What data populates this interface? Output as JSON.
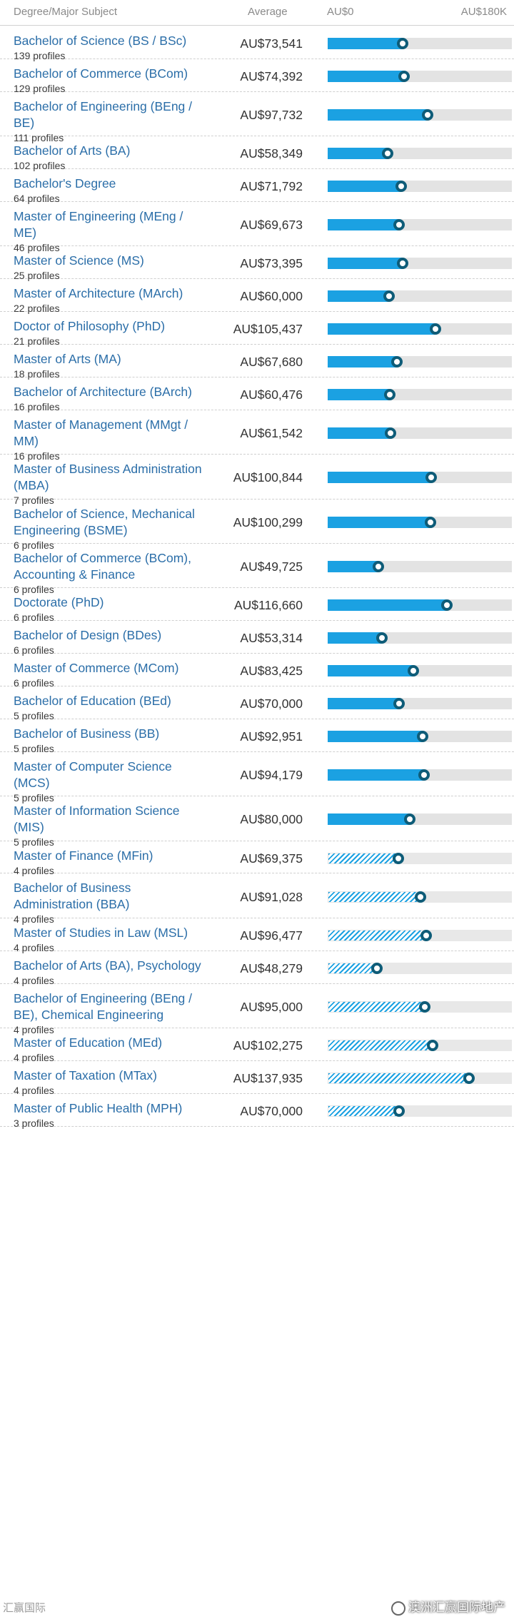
{
  "header": {
    "degree": "Degree/Major Subject",
    "average": "Average",
    "range_min": "AU$0",
    "range_max": "AU$180K"
  },
  "colors": {
    "bar": "#1ba1e2",
    "marker": "#0e5c78",
    "track": "#e3e3e3",
    "link": "#2b6ea8"
  },
  "scale_max": 180000,
  "rows": [
    {
      "name": "Bachelor of Science (BS / BSc)",
      "profiles": "139 profiles",
      "avg": "AU$73,541",
      "value": 73541,
      "lines": 1,
      "hatched": false
    },
    {
      "name": "Bachelor of Commerce (BCom)",
      "profiles": "129 profiles",
      "avg": "AU$74,392",
      "value": 74392,
      "lines": 1,
      "hatched": false
    },
    {
      "name": "Bachelor of Engineering (BEng / BE)",
      "profiles": "111 profiles",
      "avg": "AU$97,732",
      "value": 97732,
      "lines": 2,
      "hatched": false
    },
    {
      "name": "Bachelor of Arts (BA)",
      "profiles": "102 profiles",
      "avg": "AU$58,349",
      "value": 58349,
      "lines": 1,
      "hatched": false
    },
    {
      "name": "Bachelor's Degree",
      "profiles": "64 profiles",
      "avg": "AU$71,792",
      "value": 71792,
      "lines": 1,
      "hatched": false
    },
    {
      "name": "Master of Engineering (MEng / ME)",
      "profiles": "46 profiles",
      "avg": "AU$69,673",
      "value": 69673,
      "lines": 2,
      "hatched": false
    },
    {
      "name": "Master of Science (MS)",
      "profiles": "25 profiles",
      "avg": "AU$73,395",
      "value": 73395,
      "lines": 1,
      "hatched": false
    },
    {
      "name": "Master of Architecture (MArch)",
      "profiles": "22 profiles",
      "avg": "AU$60,000",
      "value": 60000,
      "lines": 1,
      "hatched": false
    },
    {
      "name": "Doctor of Philosophy (PhD)",
      "profiles": "21 profiles",
      "avg": "AU$105,437",
      "value": 105437,
      "lines": 1,
      "hatched": false
    },
    {
      "name": "Master of Arts (MA)",
      "profiles": "18 profiles",
      "avg": "AU$67,680",
      "value": 67680,
      "lines": 1,
      "hatched": false
    },
    {
      "name": "Bachelor of Architecture (BArch)",
      "profiles": "16 profiles",
      "avg": "AU$60,476",
      "value": 60476,
      "lines": 1,
      "hatched": false
    },
    {
      "name": "Master of Management (MMgt / MM)",
      "profiles": "16 profiles",
      "avg": "AU$61,542",
      "value": 61542,
      "lines": 2,
      "hatched": false
    },
    {
      "name": "Master of Business Administration (MBA)",
      "profiles": "7 profiles",
      "avg": "AU$100,844",
      "value": 100844,
      "lines": 2,
      "hatched": false
    },
    {
      "name": "Bachelor of Science, Mechanical Engineering (BSME)",
      "profiles": "6 profiles",
      "avg": "AU$100,299",
      "value": 100299,
      "lines": 2,
      "hatched": false
    },
    {
      "name": "Bachelor of Commerce (BCom), Accounting & Finance",
      "profiles": "6 profiles",
      "avg": "AU$49,725",
      "value": 49725,
      "lines": 2,
      "hatched": false
    },
    {
      "name": "Doctorate (PhD)",
      "profiles": "6 profiles",
      "avg": "AU$116,660",
      "value": 116660,
      "lines": 1,
      "hatched": false
    },
    {
      "name": "Bachelor of Design (BDes)",
      "profiles": "6 profiles",
      "avg": "AU$53,314",
      "value": 53314,
      "lines": 1,
      "hatched": false
    },
    {
      "name": "Master of Commerce (MCom)",
      "profiles": "6 profiles",
      "avg": "AU$83,425",
      "value": 83425,
      "lines": 1,
      "hatched": false
    },
    {
      "name": "Bachelor of Education (BEd)",
      "profiles": "5 profiles",
      "avg": "AU$70,000",
      "value": 70000,
      "lines": 1,
      "hatched": false
    },
    {
      "name": "Bachelor of Business (BB)",
      "profiles": "5 profiles",
      "avg": "AU$92,951",
      "value": 92951,
      "lines": 1,
      "hatched": false
    },
    {
      "name": "Master of Computer Science (MCS)",
      "profiles": "5 profiles",
      "avg": "AU$94,179",
      "value": 94179,
      "lines": 2,
      "hatched": false
    },
    {
      "name": "Master of Information Science (MIS)",
      "profiles": "5 profiles",
      "avg": "AU$80,000",
      "value": 80000,
      "lines": 2,
      "hatched": false
    },
    {
      "name": "Master of Finance (MFin)",
      "profiles": "4 profiles",
      "avg": "AU$69,375",
      "value": 69375,
      "lines": 1,
      "hatched": true
    },
    {
      "name": "Bachelor of Business Administration (BBA)",
      "profiles": "4 profiles",
      "avg": "AU$91,028",
      "value": 91028,
      "lines": 2,
      "hatched": true
    },
    {
      "name": "Master of Studies in Law (MSL)",
      "profiles": "4 profiles",
      "avg": "AU$96,477",
      "value": 96477,
      "lines": 1,
      "hatched": true
    },
    {
      "name": "Bachelor of Arts (BA), Psychology",
      "profiles": "4 profiles",
      "avg": "AU$48,279",
      "value": 48279,
      "lines": 1,
      "hatched": true
    },
    {
      "name": "Bachelor of Engineering (BEng / BE), Chemical Engineering",
      "profiles": "4 profiles",
      "avg": "AU$95,000",
      "value": 95000,
      "lines": 2,
      "hatched": true
    },
    {
      "name": "Master of Education (MEd)",
      "profiles": "4 profiles",
      "avg": "AU$102,275",
      "value": 102275,
      "lines": 1,
      "hatched": true
    },
    {
      "name": "Master of Taxation (MTax)",
      "profiles": "4 profiles",
      "avg": "AU$137,935",
      "value": 137935,
      "lines": 1,
      "hatched": true
    },
    {
      "name": "Master of Public Health (MPH)",
      "profiles": "3 profiles",
      "avg": "AU$70,000",
      "value": 70000,
      "lines": 1,
      "hatched": true
    }
  ],
  "watermark": {
    "left": "汇赢国际",
    "right": "澳洲汇赢国际地产"
  }
}
